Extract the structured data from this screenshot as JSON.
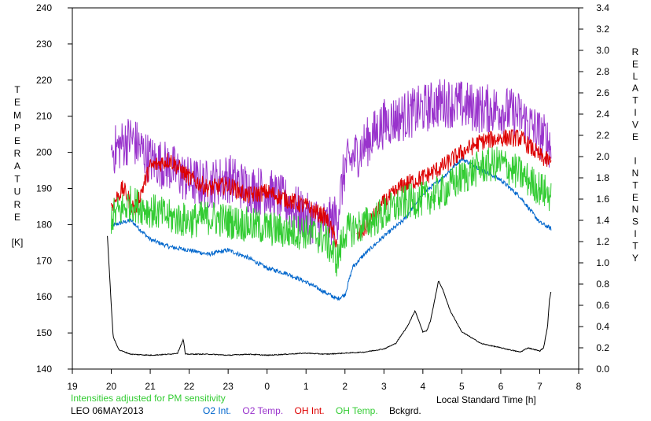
{
  "chart_data": {
    "type": "line",
    "xlabel": "Local Standard Time [h]",
    "ylabel_left": "TEMPERATURE",
    "ylabel_left_unit": "[K]",
    "ylabel_right": "RELATIVE INTENSITY",
    "x_ticks": [
      "19",
      "20",
      "21",
      "22",
      "23",
      "0",
      "1",
      "2",
      "3",
      "4",
      "5",
      "6",
      "7",
      "8"
    ],
    "xlim": [
      19,
      32
    ],
    "ylim_left": [
      140,
      240
    ],
    "ylim_right": [
      0.0,
      3.4
    ],
    "left_ticks": [
      "140",
      "150",
      "160",
      "170",
      "180",
      "190",
      "200",
      "210",
      "220",
      "230",
      "240"
    ],
    "right_ticks": [
      "0.0",
      "0.2",
      "0.4",
      "0.6",
      "0.8",
      "1.0",
      "1.2",
      "1.4",
      "1.6",
      "1.8",
      "2.0",
      "2.2",
      "2.4",
      "2.6",
      "2.8",
      "3.0",
      "3.2",
      "3.4"
    ],
    "grid": false,
    "note": "Intensities adjusted for PM sensitivity",
    "station_date": "LEO 06MAY2013",
    "series": [
      {
        "name": "O2 Int.",
        "color": "#0066cc",
        "axis": "right",
        "x": [
          20.0,
          20.5,
          21.0,
          21.5,
          22.0,
          22.5,
          23.0,
          23.5,
          24.0,
          24.5,
          25.0,
          25.5,
          25.8,
          26.0,
          26.2,
          26.5,
          27.0,
          27.5,
          28.0,
          28.5,
          29.0,
          29.5,
          30.0,
          30.5,
          31.0,
          31.3
        ],
        "y": [
          1.35,
          1.4,
          1.22,
          1.15,
          1.12,
          1.08,
          1.12,
          1.05,
          0.95,
          0.9,
          0.82,
          0.72,
          0.66,
          0.7,
          0.96,
          1.08,
          1.25,
          1.4,
          1.65,
          1.8,
          1.98,
          1.88,
          1.78,
          1.62,
          1.38,
          1.32
        ]
      },
      {
        "name": "O2 Temp.",
        "color": "#9933cc",
        "axis": "left",
        "x": [
          20.0,
          20.5,
          21.0,
          21.5,
          22.0,
          22.5,
          23.0,
          23.5,
          24.0,
          24.5,
          25.0,
          25.5,
          25.8,
          26.0,
          26.5,
          27.0,
          27.5,
          28.0,
          28.5,
          29.0,
          29.5,
          30.0,
          30.5,
          31.0,
          31.3
        ],
        "y": [
          200,
          204,
          198,
          196,
          192,
          191,
          193,
          190,
          189,
          186,
          182,
          180,
          182,
          196,
          202,
          208,
          210,
          212,
          214,
          213,
          212,
          212,
          210,
          205,
          202
        ]
      },
      {
        "name": "OH Int.",
        "color": "#dd0000",
        "axis": "left",
        "x": [
          20.0,
          20.3,
          20.6,
          21.0,
          21.5,
          22.0,
          22.5,
          23.0,
          23.5,
          24.0,
          24.5,
          25.0,
          25.5,
          25.8,
          26.0,
          26.3,
          26.6,
          27.0,
          27.5,
          28.0,
          28.5,
          29.0,
          29.5,
          30.0,
          30.5,
          31.0,
          31.3
        ],
        "y": [
          185,
          190,
          184,
          196,
          198,
          193,
          190,
          191,
          188,
          189,
          187,
          185,
          182,
          175,
          null,
          176,
          180,
          186,
          191,
          193,
          196,
          200,
          203,
          204,
          204,
          199,
          197
        ]
      },
      {
        "name": "OH Temp.",
        "color": "#33cc33",
        "axis": "left",
        "x": [
          20.0,
          20.5,
          21.0,
          21.5,
          22.0,
          22.5,
          23.0,
          23.5,
          24.0,
          24.5,
          25.0,
          25.5,
          25.8,
          26.0,
          26.5,
          27.0,
          27.5,
          28.0,
          28.5,
          29.0,
          29.5,
          30.0,
          30.5,
          31.0,
          31.3
        ],
        "y": [
          182,
          186,
          184,
          182,
          181,
          182,
          181,
          180,
          179,
          178,
          178,
          176,
          170,
          178,
          180,
          183,
          186,
          187,
          189,
          193,
          196,
          197,
          194,
          190,
          188
        ]
      },
      {
        "name": "Bckgrd.",
        "color": "#000000",
        "axis": "right",
        "x": [
          19.9,
          20.0,
          20.05,
          20.2,
          20.5,
          21.0,
          21.5,
          21.7,
          21.85,
          21.9,
          22.0,
          22.5,
          23.0,
          23.5,
          24.0,
          24.5,
          25.0,
          25.5,
          26.0,
          26.5,
          27.0,
          27.3,
          27.6,
          27.8,
          28.0,
          28.1,
          28.2,
          28.4,
          28.5,
          28.7,
          29.0,
          29.5,
          30.0,
          30.5,
          30.7,
          31.0,
          31.1,
          31.2,
          31.25,
          31.3
        ],
        "y": [
          1.25,
          0.6,
          0.3,
          0.18,
          0.14,
          0.13,
          0.14,
          0.15,
          0.28,
          0.14,
          0.14,
          0.14,
          0.13,
          0.14,
          0.13,
          0.14,
          0.15,
          0.14,
          0.15,
          0.16,
          0.19,
          0.24,
          0.4,
          0.55,
          0.35,
          0.36,
          0.46,
          0.83,
          0.76,
          0.55,
          0.35,
          0.24,
          0.2,
          0.16,
          0.2,
          0.17,
          0.2,
          0.4,
          0.65,
          0.75
        ]
      }
    ]
  }
}
